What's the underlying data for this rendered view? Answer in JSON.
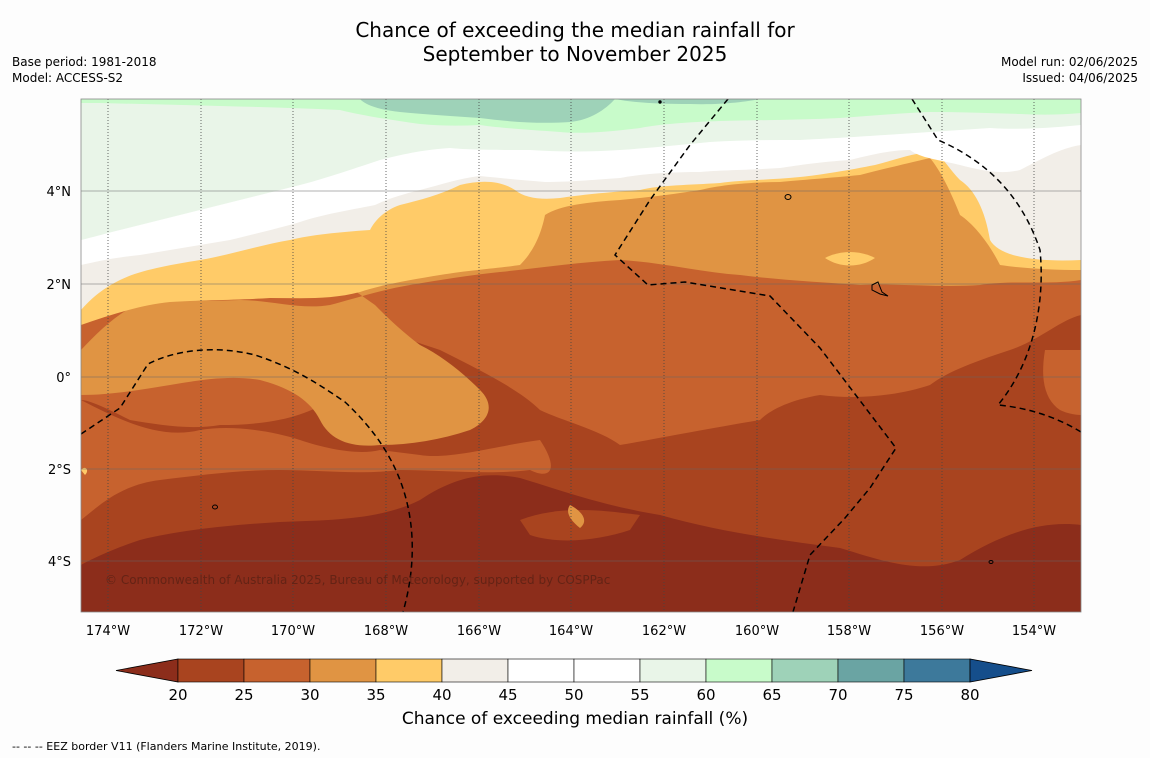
{
  "title": {
    "line1": "Chance of exceeding the median rainfall for",
    "line2": "September to November 2025"
  },
  "meta_left": {
    "base_period": "Base period: 1981-2018",
    "model": "Model: ACCESS-S2"
  },
  "meta_right": {
    "model_run": "Model run: 02/06/2025",
    "issued": "Issued: 04/06/2025"
  },
  "map": {
    "lon_ticks": [
      "174°W",
      "172°W",
      "170°W",
      "168°W",
      "166°W",
      "164°W",
      "162°W",
      "160°W",
      "158°W",
      "156°W",
      "154°W"
    ],
    "lat_ticks": [
      "4°N",
      "2°N",
      "0°",
      "2°S",
      "4°S"
    ],
    "copyright": "© Commonwealth of Australia 2025, Bureau of Meteorology, supported by COSPPac"
  },
  "legend": {
    "title": "Chance of exceeding median rainfall (%)",
    "labels": [
      "20",
      "25",
      "30",
      "35",
      "40",
      "45",
      "50",
      "55",
      "60",
      "65",
      "70",
      "75",
      "80"
    ],
    "colors": [
      "#8c2d1b",
      "#a9441f",
      "#c7622e",
      "#e09443",
      "#ffcb68",
      "#f2eee8",
      "#ffffff",
      "#ffffff",
      "#e9f5e8",
      "#c8fbca",
      "#9ed2b8",
      "#6aa4a3",
      "#3d799b",
      "#154e8b"
    ]
  },
  "footnote": "--  --  -- EEZ border V11 (Flanders Marine Institute, 2019)."
}
